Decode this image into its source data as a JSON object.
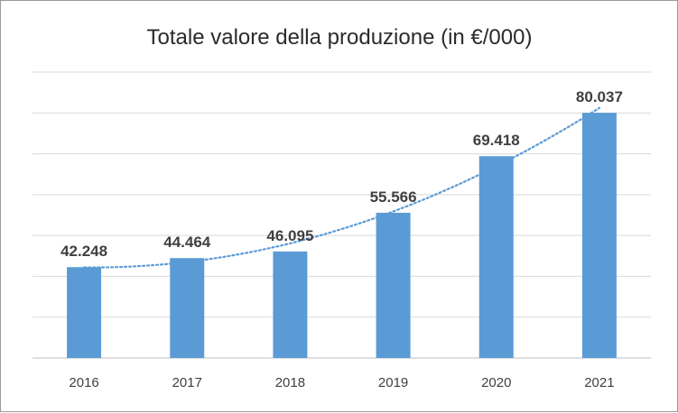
{
  "chart_data": {
    "type": "bar",
    "title": "Totale valore della produzione (in €/000)",
    "categories": [
      "2016",
      "2017",
      "2018",
      "2019",
      "2020",
      "2021"
    ],
    "values": [
      42248,
      44464,
      46095,
      55566,
      69418,
      80037
    ],
    "value_labels": [
      "42.248",
      "44.464",
      "46.095",
      "55.566",
      "69.418",
      "80.037"
    ],
    "xlabel": "",
    "ylabel": "",
    "ylim": [
      20000,
      90000
    ],
    "grid": true,
    "legend": "none",
    "trendline": {
      "type": "polynomial",
      "style": "dotted"
    },
    "colors": {
      "bar": "#5b9bd5",
      "trendline": "#5b9bd5",
      "grid": "#d9d9d9",
      "axis": "#bfbfbf"
    }
  }
}
